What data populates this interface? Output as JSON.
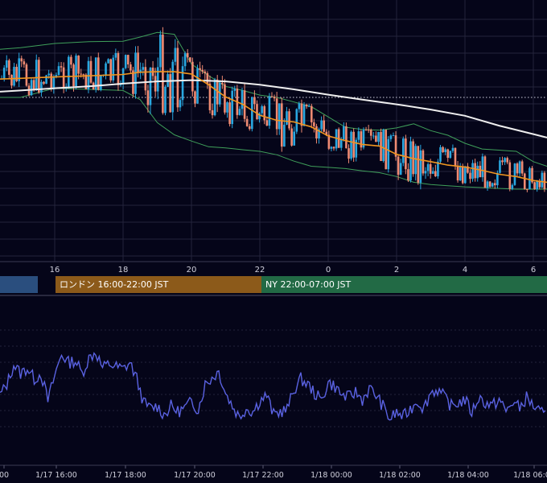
{
  "chart_data": [
    {
      "type": "candlestick",
      "panel": "price",
      "x_axis_ticks": [
        "16",
        "18",
        "20",
        "22",
        "0",
        "2",
        "4",
        "6"
      ],
      "x_tick_hours": [
        16,
        18,
        20,
        22,
        24,
        26,
        28,
        30
      ],
      "x_range_hours": [
        14.4,
        30.4
      ],
      "ma_fast_hours": [
        14.4,
        15,
        16,
        17,
        18,
        18.5,
        19,
        19.5,
        20,
        20.5,
        21,
        21.5,
        22,
        22.5,
        23,
        23.5,
        24,
        24.5,
        25,
        25.5,
        26,
        26.5,
        27,
        27.5,
        28,
        28.5,
        29,
        29.5,
        30,
        30.4
      ],
      "ma_fast": [
        0.52,
        0.517,
        0.511,
        0.506,
        0.5,
        0.49,
        0.488,
        0.488,
        0.498,
        0.545,
        0.598,
        0.63,
        0.678,
        0.7,
        0.707,
        0.728,
        0.768,
        0.788,
        0.805,
        0.812,
        0.848,
        0.867,
        0.88,
        0.895,
        0.903,
        0.918,
        0.935,
        0.945,
        0.962,
        0.97
      ],
      "ma_slow_hours": [
        14.4,
        15,
        16,
        17,
        18,
        19,
        20,
        21,
        22,
        23,
        24,
        25,
        26,
        27,
        28,
        29,
        30,
        30.4
      ],
      "ma_slow": [
        0.575,
        0.57,
        0.56,
        0.552,
        0.54,
        0.53,
        0.525,
        0.53,
        0.545,
        0.565,
        0.588,
        0.61,
        0.63,
        0.653,
        0.68,
        0.723,
        0.76,
        0.775
      ],
      "bollinger_upper": [
        0.39,
        0.383,
        0.365,
        0.357,
        0.355,
        0.337,
        0.317,
        0.325,
        0.455,
        0.505,
        0.552,
        0.57,
        0.59,
        0.6,
        0.62,
        0.64,
        0.685,
        0.73,
        0.74,
        0.743,
        0.733,
        0.715,
        0.745,
        0.765,
        0.8,
        0.825,
        0.83,
        0.835,
        0.88,
        0.9
      ],
      "bollinger_lower": [
        0.6,
        0.6,
        0.56,
        0.565,
        0.57,
        0.61,
        0.71,
        0.763,
        0.79,
        0.815,
        0.82,
        0.828,
        0.835,
        0.85,
        0.878,
        0.9,
        0.905,
        0.91,
        0.92,
        0.928,
        0.945,
        0.97,
        0.98,
        0.985,
        0.99,
        0.993,
        0.997,
        1.0,
        1.0,
        1.0
      ],
      "reference_line_level": 0.6
    },
    {
      "type": "line",
      "panel": "oscillator",
      "x_range_hours": [
        14.4,
        30.4
      ],
      "oscillator_hours": [
        14.4,
        14.6,
        14.8,
        15.0,
        15.2,
        15.4,
        15.6,
        15.8,
        16.0,
        16.2,
        16.4,
        16.6,
        16.8,
        17.0,
        17.2,
        17.4,
        17.6,
        17.8,
        18.0,
        18.2,
        18.4,
        18.6,
        18.8,
        19.0,
        19.2,
        19.4,
        19.6,
        19.8,
        20.0,
        20.2,
        20.4,
        20.6,
        20.8,
        21.0,
        21.2,
        21.4,
        21.6,
        21.8,
        22.0,
        22.2,
        22.4,
        22.6,
        22.8,
        23.0,
        23.2,
        23.4,
        23.6,
        23.8,
        24.0,
        24.2,
        24.4,
        24.6,
        24.8,
        25.0,
        25.2,
        25.4,
        25.6,
        25.8,
        26.0,
        26.2,
        26.4,
        26.6,
        26.8,
        27.0,
        27.2,
        27.4,
        27.6,
        27.8,
        28.0,
        28.2,
        28.4,
        28.6,
        28.8,
        29.0,
        29.2,
        29.4,
        29.6,
        29.8,
        30.0,
        30.2,
        30.4
      ],
      "oscillator_values": [
        0.4,
        0.5,
        0.68,
        0.6,
        0.65,
        0.55,
        0.6,
        0.35,
        0.58,
        0.78,
        0.7,
        0.72,
        0.6,
        0.74,
        0.8,
        0.65,
        0.69,
        0.66,
        0.64,
        0.7,
        0.55,
        0.33,
        0.28,
        0.3,
        0.22,
        0.3,
        0.25,
        0.28,
        0.34,
        0.27,
        0.5,
        0.56,
        0.62,
        0.42,
        0.3,
        0.2,
        0.28,
        0.25,
        0.35,
        0.4,
        0.22,
        0.25,
        0.27,
        0.45,
        0.55,
        0.5,
        0.42,
        0.35,
        0.52,
        0.48,
        0.4,
        0.38,
        0.43,
        0.36,
        0.46,
        0.4,
        0.3,
        0.18,
        0.24,
        0.2,
        0.27,
        0.35,
        0.28,
        0.43,
        0.45,
        0.38,
        0.3,
        0.33,
        0.36,
        0.24,
        0.38,
        0.33,
        0.3,
        0.36,
        0.25,
        0.34,
        0.28,
        0.38,
        0.3,
        0.24,
        0.2
      ]
    }
  ],
  "sessions": [
    {
      "label": "",
      "color": "#2a4e7e"
    },
    {
      "label": "ロンドン 16:00-22:00 JST",
      "color": "#8c5a1a"
    },
    {
      "label": "NY 22:00-07:00 JST",
      "color": "#226a45"
    }
  ],
  "time_axis": [
    "00",
    "1/17 16:00",
    "1/17 18:00",
    "1/17 20:00",
    "1/17 22:00",
    "1/18 00:00",
    "1/18 02:00",
    "1/18 04:00",
    "1/18 06:00"
  ],
  "colors": {
    "background": "#050519",
    "candle_up": "#29a7e0",
    "candle_down": "#ef8a72",
    "ma_fast": "#f0951f",
    "ma_slow": "#eeeeee",
    "bollinger": "#3f9f5a",
    "oscillator": "#5a62e2",
    "grid": "#24243c"
  }
}
